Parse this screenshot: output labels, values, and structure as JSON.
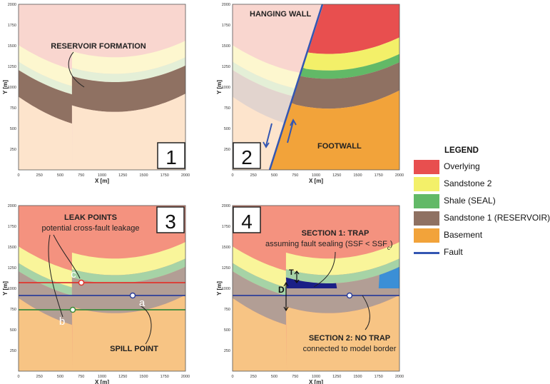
{
  "colors": {
    "overlying": "#e84f4f",
    "sandstone2": "#f3f069",
    "shale": "#62b967",
    "sandstone1": "#8f7162",
    "basement": "#f2a33a",
    "fault": "#3356b2",
    "trap": "#1a1f86",
    "spill_line": "#2d3f9a",
    "leak_line_c": "#e0342e",
    "leak_line_b": "#3a8a3a"
  },
  "panels": [
    {
      "number": "1",
      "xlabel": "X [m]",
      "ylabel": "Y [m]"
    },
    {
      "number": "2",
      "xlabel": "X [m]",
      "ylabel": "Y [m]"
    },
    {
      "number": "3",
      "xlabel": "X [m]",
      "ylabel": "Y [m]"
    },
    {
      "number": "4",
      "xlabel": "X [m]",
      "ylabel": "Y [m]"
    }
  ],
  "x_ticks": [
    "0",
    "250",
    "500",
    "750",
    "1000",
    "1250",
    "1500",
    "1750",
    "2000"
  ],
  "y_ticks": [
    "250",
    "500",
    "750",
    "1000",
    "1250",
    "1500",
    "1750",
    "2000"
  ],
  "annotations": {
    "reservoir_formation": "RESERVOIR FORMATION",
    "hanging_wall": "HANGING WALL",
    "footwall": "FOOTWALL",
    "leak_points": "LEAK POINTS",
    "cross_fault": "potential cross-fault leakage",
    "point_c": "c",
    "point_b": "b",
    "point_a": "a",
    "spill_point": "SPILL POINT",
    "section1_title": "SECTION 1: TRAP",
    "section1_sub": "assuming fault sealing (SSF < SSF",
    "section1_sub_c": "c",
    "section1_close": ")",
    "label_t": "T",
    "label_d": "D",
    "section2_title": "SECTION 2: NO TRAP",
    "section2_sub": "connected to model border"
  },
  "legend": {
    "title": "LEGEND",
    "items": [
      {
        "label": "Overlying",
        "color": "#e84f4f",
        "kind": "swatch"
      },
      {
        "label": "Sandstone 2",
        "color": "#f3f069",
        "kind": "swatch"
      },
      {
        "label": "Shale (SEAL)",
        "color": "#62b967",
        "kind": "swatch"
      },
      {
        "label": "Sandstone 1 (RESERVOIR)",
        "color": "#8f7162",
        "kind": "swatch"
      },
      {
        "label": "Basement",
        "color": "#f2a33a",
        "kind": "swatch"
      },
      {
        "label": "Fault",
        "color": "#3356b2",
        "kind": "line"
      }
    ]
  }
}
